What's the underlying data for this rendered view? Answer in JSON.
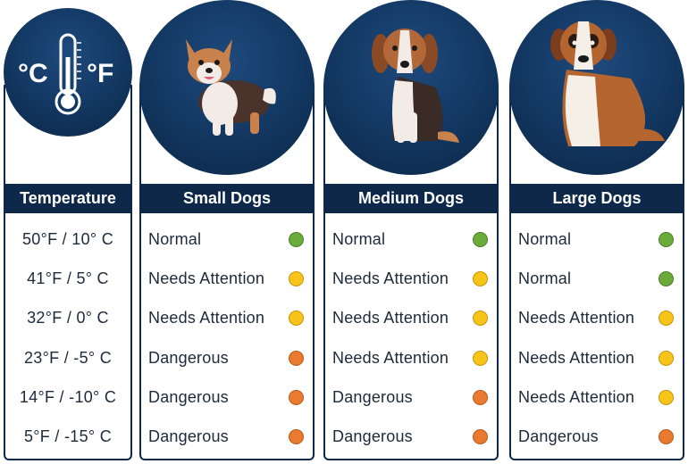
{
  "temperature_column": {
    "header": "Temperature",
    "icon": "thermometer-icon",
    "unit_left": "°C",
    "unit_right": "°F",
    "rows": [
      "50°F / 10° C",
      "41°F / 5° C",
      "32°F / 0° C",
      "23°F / -5° C",
      "14°F / -10° C",
      "5°F / -15° C"
    ]
  },
  "status_colors": {
    "Normal": "#6aab3a",
    "Needs Attention": "#f8c41a",
    "Dangerous": "#ea7a30"
  },
  "dog_columns": [
    {
      "header": "Small Dogs",
      "image": "small-dog-illustration",
      "rows": [
        "Normal",
        "Needs Attention",
        "Needs Attention",
        "Dangerous",
        "Dangerous",
        "Dangerous"
      ]
    },
    {
      "header": "Medium Dogs",
      "image": "medium-dog-illustration",
      "rows": [
        "Normal",
        "Needs Attention",
        "Needs Attention",
        "Needs Attention",
        "Dangerous",
        "Dangerous"
      ]
    },
    {
      "header": "Large Dogs",
      "image": "large-dog-illustration",
      "rows": [
        "Normal",
        "Normal",
        "Needs Attention",
        "Needs Attention",
        "Needs Attention",
        "Dangerous"
      ]
    }
  ]
}
